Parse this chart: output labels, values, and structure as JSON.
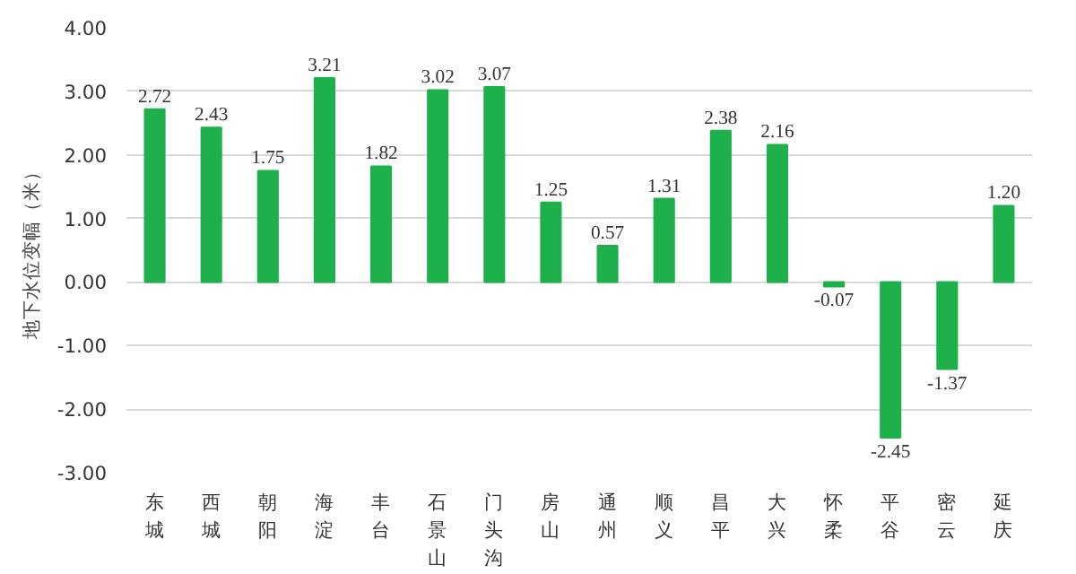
{
  "chart_data": {
    "type": "bar",
    "ylabel": "地下水位变幅（米）",
    "categories": [
      "东城",
      "西城",
      "朝阳",
      "海淀",
      "丰台",
      "石景山",
      "门头沟",
      "房山",
      "通州",
      "顺义",
      "昌平",
      "大兴",
      "怀柔",
      "平谷",
      "密云",
      "延庆"
    ],
    "values": [
      2.72,
      2.43,
      1.75,
      3.21,
      1.82,
      3.02,
      3.07,
      1.25,
      0.57,
      1.31,
      2.38,
      2.16,
      -0.07,
      -2.45,
      -1.37,
      1.2
    ],
    "value_labels": [
      "2.72",
      "2.43",
      "1.75",
      "3.21",
      "1.82",
      "3.02",
      "3.07",
      "1.25",
      "0.57",
      "1.31",
      "2.38",
      "2.16",
      "-0.07",
      "-2.45",
      "-1.37",
      "1.20"
    ],
    "color": "#1db04b",
    "ylim": [
      -3,
      4
    ],
    "yticks": [
      {
        "value": -3,
        "label": "-3.00"
      },
      {
        "value": -2,
        "label": "-2.00"
      },
      {
        "value": -1,
        "label": "-1.00"
      },
      {
        "value": 0,
        "label": "0.00"
      },
      {
        "value": 1,
        "label": "1.00"
      },
      {
        "value": 2,
        "label": "2.00"
      },
      {
        "value": 3,
        "label": "3.00"
      },
      {
        "value": 4,
        "label": "4.00"
      }
    ],
    "grid": "y"
  }
}
